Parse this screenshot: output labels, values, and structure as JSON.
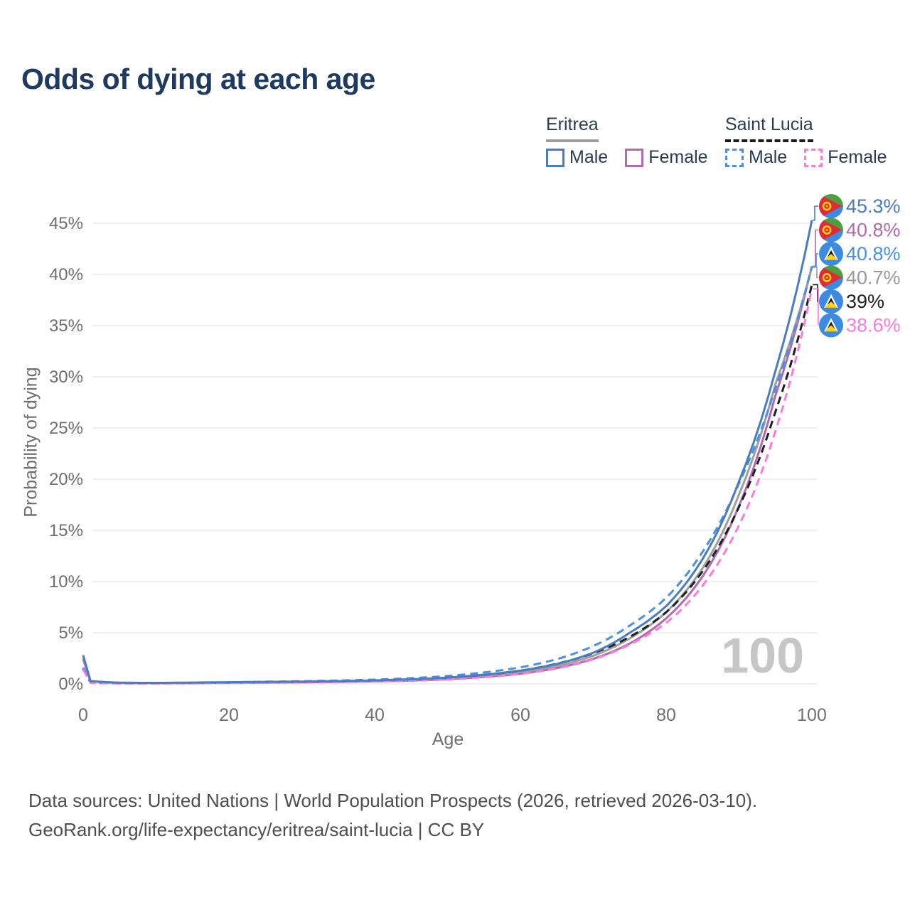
{
  "title": "Odds of dying at each age",
  "watermark_age": "100",
  "legend": {
    "groups": [
      {
        "country": "Eritrea",
        "underline_style": "solid",
        "underline_color": "#9e9e9e",
        "items": [
          {
            "label": "Male",
            "color": "#4a7cc2",
            "dashed": false
          },
          {
            "label": "Female",
            "color": "#b269ae",
            "dashed": false
          }
        ]
      },
      {
        "country": "Saint Lucia",
        "underline_style": "dashed",
        "underline_color": "#1a1a1a",
        "items": [
          {
            "label": "Male",
            "color": "#4a90e2",
            "dashed": true
          },
          {
            "label": "Female",
            "color": "#fb7ae0",
            "dashed": true
          }
        ]
      }
    ]
  },
  "chart_data": {
    "type": "line",
    "title": "Odds of dying at each age",
    "xlabel": "Age",
    "ylabel": "Probability of dying",
    "xlim": [
      0,
      100
    ],
    "ylim": [
      0,
      47
    ],
    "xticks": [
      0,
      20,
      40,
      60,
      80,
      100
    ],
    "yticks": [
      0,
      5,
      10,
      15,
      20,
      25,
      30,
      35,
      40,
      45
    ],
    "ytick_suffix": "%",
    "grid": true,
    "legend_position": "top-right",
    "x": [
      0,
      1,
      5,
      10,
      15,
      20,
      25,
      30,
      35,
      40,
      45,
      50,
      55,
      60,
      65,
      70,
      75,
      80,
      85,
      90,
      95,
      100
    ],
    "series": [
      {
        "name": "Eritrea Male",
        "color": "#4a7cc2",
        "dashed": false,
        "values": [
          2.8,
          0.28,
          0.12,
          0.1,
          0.13,
          0.17,
          0.2,
          0.23,
          0.28,
          0.35,
          0.45,
          0.62,
          0.9,
          1.3,
          1.95,
          3.05,
          5.0,
          7.6,
          12.2,
          19.8,
          30.6,
          45.3
        ]
      },
      {
        "name": "Eritrea Female",
        "color": "#b269ae",
        "dashed": false,
        "values": [
          2.4,
          0.25,
          0.1,
          0.08,
          0.09,
          0.11,
          0.13,
          0.16,
          0.2,
          0.25,
          0.33,
          0.46,
          0.68,
          1.0,
          1.55,
          2.45,
          3.95,
          6.4,
          10.5,
          17.4,
          28.2,
          40.8
        ]
      },
      {
        "name": "Eritrea Both sexes",
        "color": "#9e9e9e",
        "dashed": false,
        "values": [
          2.6,
          0.27,
          0.11,
          0.09,
          0.11,
          0.14,
          0.17,
          0.2,
          0.24,
          0.3,
          0.39,
          0.54,
          0.79,
          1.15,
          1.75,
          2.75,
          4.45,
          7.0,
          11.3,
          18.5,
          29.3,
          40.7
        ]
      },
      {
        "name": "Saint Lucia Male",
        "color": "#4a90e2",
        "dashed": true,
        "values": [
          1.6,
          0.12,
          0.06,
          0.06,
          0.1,
          0.16,
          0.22,
          0.27,
          0.33,
          0.42,
          0.56,
          0.78,
          1.12,
          1.62,
          2.42,
          3.7,
          5.7,
          8.4,
          12.9,
          19.6,
          28.9,
          40.8
        ]
      },
      {
        "name": "Saint Lucia Both sexes",
        "color": "#1f1f1f",
        "dashed": true,
        "values": [
          1.5,
          0.11,
          0.06,
          0.06,
          0.08,
          0.12,
          0.16,
          0.2,
          0.25,
          0.32,
          0.43,
          0.6,
          0.88,
          1.3,
          1.97,
          3.0,
          4.6,
          7.0,
          11.0,
          17.3,
          26.6,
          39.0
        ]
      },
      {
        "name": "Saint Lucia Female",
        "color": "#fb7ae0",
        "dashed": true,
        "values": [
          1.4,
          0.1,
          0.05,
          0.05,
          0.06,
          0.09,
          0.11,
          0.14,
          0.18,
          0.23,
          0.31,
          0.44,
          0.65,
          0.98,
          1.52,
          2.4,
          3.85,
          5.95,
          9.6,
          15.5,
          24.7,
          38.6
        ]
      }
    ],
    "end_labels": [
      {
        "series": 0,
        "flag": "eritrea",
        "text": "45.3%",
        "color": "#4a7cc2"
      },
      {
        "series": 1,
        "flag": "eritrea",
        "text": "40.8%",
        "color": "#b269ae"
      },
      {
        "series": 3,
        "flag": "saint-lucia",
        "text": "40.8%",
        "color": "#4a90e2"
      },
      {
        "series": 2,
        "flag": "eritrea",
        "text": "40.7%",
        "color": "#9a9a9a"
      },
      {
        "series": 4,
        "flag": "saint-lucia",
        "text": "39%",
        "color": "#1f1f1f"
      },
      {
        "series": 5,
        "flag": "saint-lucia",
        "text": "38.6%",
        "color": "#fb7ae0"
      }
    ],
    "flag_colors": {
      "eritrea": {
        "green": "#4f9e3f",
        "blue": "#3d8be0",
        "red": "#e02a3c",
        "gold": "#ffcf0a"
      },
      "saint_lucia": {
        "blue": "#3d8be0",
        "white": "#ffffff",
        "black": "#141414",
        "gold": "#fcd116"
      }
    }
  },
  "footer": {
    "line1": "Data sources: United Nations | World Population Prospects (2026, retrieved 2026-03-10).",
    "line2": "GeoRank.org/life-expectancy/eritrea/saint-lucia | CC BY"
  }
}
